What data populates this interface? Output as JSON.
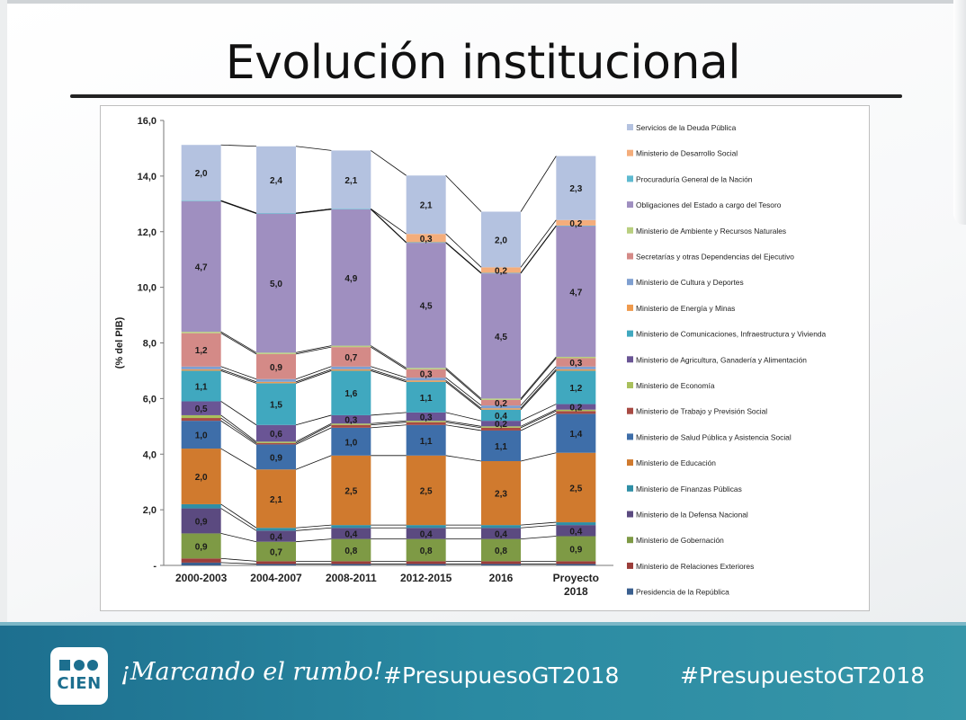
{
  "slide": {
    "title": "Evolución institucional",
    "footer": {
      "logo_text": "CIEN",
      "slogan": "¡Marcando el rumbo!",
      "hashtag_1": "#PresupuesoGT2018",
      "hashtag_2": "#PresupuestoGT2018",
      "color": "#1d6f8f"
    }
  },
  "chart_data": {
    "type": "bar",
    "stacked": true,
    "ylabel": "(% del PIB)",
    "ylim": [
      0,
      16
    ],
    "yticks": [
      {
        "value": 0,
        "label": "-"
      },
      {
        "value": 2,
        "label": "2,0"
      },
      {
        "value": 4,
        "label": "4,0"
      },
      {
        "value": 6,
        "label": "6,0"
      },
      {
        "value": 8,
        "label": "8,0"
      },
      {
        "value": 10,
        "label": "10,0"
      },
      {
        "value": 12,
        "label": "12,0"
      },
      {
        "value": 14,
        "label": "14,0"
      },
      {
        "value": 16,
        "label": "16,0"
      }
    ],
    "categories": [
      "2000-2003",
      "2004-2007",
      "2008-2011",
      "2012-2015",
      "2016",
      "Proyecto 2018"
    ],
    "connector_lines": true,
    "legend_position": "right",
    "series": [
      {
        "name": "Presidencia de la República",
        "color": "#3a5f8f",
        "values": [
          0.1,
          0.05,
          0.05,
          0.05,
          0.05,
          0.05
        ],
        "labels": [
          "",
          "",
          "",
          "",
          "",
          ""
        ]
      },
      {
        "name": "Ministerio de Relaciones Exteriores",
        "color": "#9b3d3a",
        "values": [
          0.15,
          0.1,
          0.1,
          0.1,
          0.1,
          0.1
        ],
        "labels": [
          "",
          "",
          "",
          "",
          "",
          ""
        ]
      },
      {
        "name": "Ministerio de Gobernación",
        "color": "#7e9a45",
        "values": [
          0.9,
          0.7,
          0.8,
          0.8,
          0.8,
          0.9
        ],
        "labels": [
          "0,9",
          "0,7",
          "0,8",
          "0,8",
          "0,8",
          "0,9"
        ]
      },
      {
        "name": "Ministerio de la Defensa Nacional",
        "color": "#5b4a80",
        "values": [
          0.9,
          0.4,
          0.4,
          0.4,
          0.4,
          0.4
        ],
        "labels": [
          "0,9",
          "0,4",
          "0,4",
          "0,4",
          "0,4",
          "0,4"
        ]
      },
      {
        "name": "Ministerio de Finanzas Públicas",
        "color": "#2f8fa6",
        "values": [
          0.15,
          0.1,
          0.1,
          0.1,
          0.1,
          0.1
        ],
        "labels": [
          "",
          "",
          "",
          "",
          "",
          ""
        ]
      },
      {
        "name": "Ministerio de Educación",
        "color": "#d07a2e",
        "values": [
          2.0,
          2.1,
          2.5,
          2.5,
          2.3,
          2.5
        ],
        "labels": [
          "2,0",
          "2,1",
          "2,5",
          "2,5",
          "2,3",
          "2,5"
        ]
      },
      {
        "name": "Ministerio de Salud Pública y Asistencia Social",
        "color": "#3e6ea9",
        "values": [
          1.0,
          0.9,
          1.0,
          1.1,
          1.1,
          1.4
        ],
        "labels": [
          "1,0",
          "0,9",
          "1,0",
          "1,1",
          "1,1",
          "1,4"
        ]
      },
      {
        "name": "Ministerio de Trabajo y Previsión Social",
        "color": "#a84a43",
        "values": [
          0.1,
          0.05,
          0.1,
          0.1,
          0.1,
          0.1
        ],
        "labels": [
          "",
          "",
          "",
          "",
          "",
          ""
        ]
      },
      {
        "name": "Ministerio de Economía",
        "color": "#a9c05c",
        "values": [
          0.1,
          0.05,
          0.05,
          0.05,
          0.05,
          0.05
        ],
        "labels": [
          "",
          "",
          "",
          "",
          "",
          ""
        ]
      },
      {
        "name": "Ministerio de Agricultura, Ganadería y Alimentación",
        "color": "#6a5595",
        "values": [
          0.5,
          0.6,
          0.3,
          0.3,
          0.2,
          0.2
        ],
        "labels": [
          "0,5",
          "0,6",
          "0,3",
          "0,3",
          "0,2",
          "0,2"
        ]
      },
      {
        "name": "Ministerio de Comunicaciones, Infraestructura y Vivienda",
        "color": "#40a8bf",
        "values": [
          1.1,
          1.5,
          1.6,
          1.1,
          0.4,
          1.2
        ],
        "labels": [
          "1,1",
          "1,5",
          "1,6",
          "1,1",
          "0,4",
          "1,2"
        ]
      },
      {
        "name": "Ministerio de Energía y Minas",
        "color": "#ef9a4d",
        "values": [
          0.05,
          0.05,
          0.05,
          0.05,
          0.05,
          0.05
        ],
        "labels": [
          "",
          "",
          "",
          "",
          "",
          ""
        ]
      },
      {
        "name": "Ministerio de Cultura y Deportes",
        "color": "#7f9fd0",
        "values": [
          0.1,
          0.1,
          0.1,
          0.1,
          0.1,
          0.1
        ],
        "labels": [
          "",
          "",
          "",
          "",
          "",
          ""
        ]
      },
      {
        "name": "Secretarías y otras Dependencias del Ejecutivo",
        "color": "#d48a87",
        "values": [
          1.2,
          0.9,
          0.7,
          0.3,
          0.2,
          0.3
        ],
        "labels": [
          "1,2",
          "0,9",
          "0,7",
          "0,3",
          "0,2",
          "0,3"
        ]
      },
      {
        "name": "Ministerio de Ambiente y Recursos Naturales",
        "color": "#b9cf7f",
        "values": [
          0.05,
          0.05,
          0.05,
          0.05,
          0.05,
          0.05
        ],
        "labels": [
          "",
          "",
          "",
          "",
          "",
          ""
        ]
      },
      {
        "name": "Obligaciones del Estado a cargo del Tesoro",
        "color": "#9f8fc0",
        "values": [
          4.7,
          5.0,
          4.9,
          4.5,
          4.5,
          4.7
        ],
        "labels": [
          "4,7",
          "5,0",
          "4,9",
          "4,5",
          "4,5",
          "4,7"
        ]
      },
      {
        "name": "Procuraduría General de la Nación",
        "color": "#5ebad0",
        "values": [
          0.02,
          0.02,
          0.02,
          0.02,
          0.02,
          0.02
        ],
        "labels": [
          "",
          "",
          "",
          "",
          "",
          ""
        ]
      },
      {
        "name": "Ministerio de Desarrollo Social",
        "color": "#f4ad7b",
        "values": [
          0,
          0,
          0,
          0.3,
          0.2,
          0.2
        ],
        "labels": [
          "",
          "",
          "",
          "0,3",
          "0,2",
          "0,2"
        ]
      },
      {
        "name": "Servicios de la Deuda Pública",
        "color": "#b4c2e0",
        "values": [
          2.0,
          2.4,
          2.1,
          2.1,
          2.0,
          2.3
        ],
        "labels": [
          "2,0",
          "2,4",
          "2,1",
          "2,1",
          "2,0",
          "2,3"
        ]
      }
    ]
  }
}
